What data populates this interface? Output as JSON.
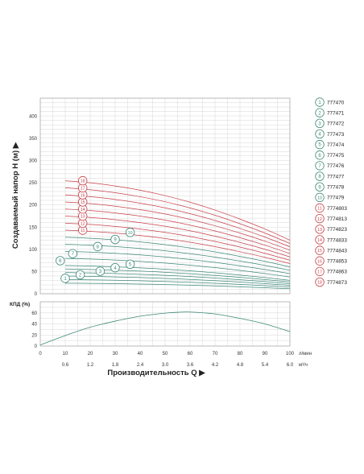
{
  "chart_data": [
    {
      "type": "line",
      "title": "",
      "ylabel": "Создаваемый напор Н (м) ▶",
      "y_ticks": [
        0,
        50,
        100,
        150,
        200,
        250,
        300,
        350,
        400
      ],
      "ylim": [
        0,
        440
      ],
      "xlim": [
        0,
        100
      ],
      "grid": true,
      "legend_placement": "right",
      "series": [
        {
          "name": "777470",
          "marker": "1",
          "color": "#3f8a79",
          "x": [
            10,
            20,
            30,
            40,
            50,
            60,
            70,
            80,
            90,
            100
          ],
          "y": [
            23.8,
            23.4,
            22.7,
            21.8,
            20.6,
            19.3,
            17.6,
            15.7,
            13.6,
            11.3
          ]
        },
        {
          "name": "777471",
          "marker": "2",
          "color": "#3f8a79",
          "x": [
            10,
            20,
            30,
            40,
            50,
            60,
            70,
            80,
            90,
            100
          ],
          "y": [
            31.8,
            31.2,
            30.3,
            29.1,
            27.6,
            25.7,
            23.5,
            21.0,
            18.2,
            15.1
          ]
        },
        {
          "name": "777472",
          "marker": "3",
          "color": "#3f8a79",
          "x": [
            10,
            20,
            30,
            40,
            50,
            60,
            70,
            80,
            90,
            100
          ],
          "y": [
            39.8,
            39.0,
            37.9,
            36.4,
            34.5,
            32.2,
            29.4,
            26.3,
            22.8,
            18.9
          ]
        },
        {
          "name": "777473",
          "marker": "4",
          "color": "#3f8a79",
          "x": [
            10,
            20,
            30,
            40,
            50,
            60,
            70,
            80,
            90,
            100
          ],
          "y": [
            47.7,
            46.8,
            45.5,
            43.7,
            41.4,
            38.6,
            35.3,
            31.5,
            27.3,
            22.6
          ]
        },
        {
          "name": "777474",
          "marker": "5",
          "color": "#3f8a79",
          "x": [
            10,
            20,
            30,
            40,
            50,
            60,
            70,
            80,
            90,
            100
          ],
          "y": [
            55.6,
            54.6,
            53.0,
            50.9,
            48.3,
            45.0,
            41.2,
            36.8,
            31.9,
            26.4
          ]
        },
        {
          "name": "777475",
          "marker": "6",
          "color": "#3f8a79",
          "x": [
            10,
            20,
            30,
            40,
            50,
            60,
            70,
            80,
            90,
            100
          ],
          "y": [
            63.5,
            62.4,
            60.6,
            58.2,
            55.2,
            51.5,
            47.1,
            42.0,
            36.4,
            30.2
          ]
        },
        {
          "name": "777476",
          "marker": "7",
          "color": "#3f8a79",
          "x": [
            10,
            20,
            30,
            40,
            50,
            60,
            70,
            80,
            90,
            100
          ],
          "y": [
            79.4,
            78.0,
            75.8,
            72.8,
            69.0,
            64.3,
            58.8,
            52.5,
            45.5,
            37.7
          ]
        },
        {
          "name": "777477",
          "marker": "8",
          "color": "#3f8a79",
          "x": [
            10,
            20,
            30,
            40,
            50,
            60,
            70,
            80,
            90,
            100
          ],
          "y": [
            95.3,
            93.6,
            90.9,
            87.4,
            82.8,
            77.2,
            70.6,
            63.0,
            54.6,
            45.2
          ]
        },
        {
          "name": "777478",
          "marker": "9",
          "color": "#3f8a79",
          "x": [
            10,
            20,
            30,
            40,
            50,
            60,
            70,
            80,
            90,
            100
          ],
          "y": [
            111.2,
            109.2,
            106.1,
            101.9,
            96.6,
            90.1,
            82.4,
            73.5,
            63.7,
            52.8
          ]
        },
        {
          "name": "777479",
          "marker": "10",
          "color": "#3f8a79",
          "x": [
            10,
            20,
            30,
            40,
            50,
            60,
            70,
            80,
            90,
            100
          ],
          "y": [
            127.1,
            124.8,
            121.2,
            116.5,
            110.4,
            102.9,
            94.1,
            84.0,
            72.8,
            60.3
          ]
        },
        {
          "name": "7774803",
          "marker": "11",
          "color": "#c8424b",
          "x": [
            10,
            20,
            30,
            40,
            50,
            60,
            70,
            80,
            90,
            100
          ],
          "y": [
            143.0,
            140.4,
            136.4,
            131.0,
            124.2,
            115.8,
            105.9,
            94.5,
            81.9,
            67.9
          ]
        },
        {
          "name": "7774813",
          "marker": "12",
          "color": "#c8424b",
          "x": [
            10,
            20,
            30,
            40,
            50,
            60,
            70,
            80,
            90,
            100
          ],
          "y": [
            158.8,
            156.0,
            151.5,
            145.6,
            138.0,
            128.7,
            117.6,
            105.0,
            91.0,
            75.4
          ]
        },
        {
          "name": "7774823",
          "marker": "13",
          "color": "#c8424b",
          "x": [
            10,
            20,
            30,
            40,
            50,
            60,
            70,
            80,
            90,
            100
          ],
          "y": [
            174.7,
            171.6,
            166.7,
            160.1,
            151.8,
            141.6,
            129.4,
            115.5,
            100.1,
            82.9
          ]
        },
        {
          "name": "7774833",
          "marker": "14",
          "color": "#c8424b",
          "x": [
            10,
            20,
            30,
            40,
            50,
            60,
            70,
            80,
            90,
            100
          ],
          "y": [
            190.6,
            187.2,
            181.8,
            174.7,
            165.6,
            154.4,
            141.2,
            126.0,
            109.2,
            90.5
          ]
        },
        {
          "name": "7774843",
          "marker": "15",
          "color": "#c8424b",
          "x": [
            10,
            20,
            30,
            40,
            50,
            60,
            70,
            80,
            90,
            100
          ],
          "y": [
            206.5,
            202.8,
            197.0,
            189.2,
            179.4,
            167.3,
            152.9,
            136.5,
            118.3,
            98.0
          ]
        },
        {
          "name": "7774853",
          "marker": "16",
          "color": "#c8424b",
          "x": [
            10,
            20,
            30,
            40,
            50,
            60,
            70,
            80,
            90,
            100
          ],
          "y": [
            222.4,
            218.4,
            212.1,
            203.8,
            193.2,
            180.2,
            164.7,
            147.0,
            127.4,
            105.6
          ]
        },
        {
          "name": "7774863",
          "marker": "17",
          "color": "#c8424b",
          "x": [
            10,
            20,
            30,
            40,
            50,
            60,
            70,
            80,
            90,
            100
          ],
          "y": [
            238.3,
            234.0,
            227.3,
            218.3,
            207.0,
            193.0,
            176.5,
            157.5,
            136.5,
            113.1
          ]
        },
        {
          "name": "7774873",
          "marker": "18",
          "color": "#c8424b",
          "x": [
            10,
            20,
            30,
            40,
            50,
            60,
            70,
            80,
            90,
            100
          ],
          "y": [
            254.2,
            249.6,
            242.4,
            232.9,
            220.8,
            205.9,
            188.2,
            168.0,
            145.6,
            120.6
          ]
        }
      ]
    },
    {
      "type": "line",
      "title": "",
      "ylabel": "КПД (%)",
      "y_ticks": [
        0,
        20,
        40,
        60
      ],
      "ylim": [
        0,
        80
      ],
      "x_ticks_primary": [
        0,
        10,
        20,
        30,
        40,
        50,
        60,
        70,
        80,
        90,
        100
      ],
      "x_unit_primary": "л/мин",
      "x_ticks_secondary": [
        "0.6",
        "1.2",
        "1.8",
        "2.4",
        "3.0",
        "3.6",
        "4.2",
        "4.8",
        "5.4",
        "6.0"
      ],
      "x_unit_secondary": "м³/ч",
      "xlabel": "Производительность Q ▶",
      "grid": true,
      "series": [
        {
          "color": "#3f8a79",
          "x": [
            0,
            10,
            20,
            30,
            40,
            50,
            55,
            60,
            70,
            80,
            90,
            100
          ],
          "y": [
            2,
            19,
            34,
            45,
            54,
            59.5,
            61,
            61.5,
            58,
            50,
            40,
            26
          ]
        }
      ]
    }
  ]
}
